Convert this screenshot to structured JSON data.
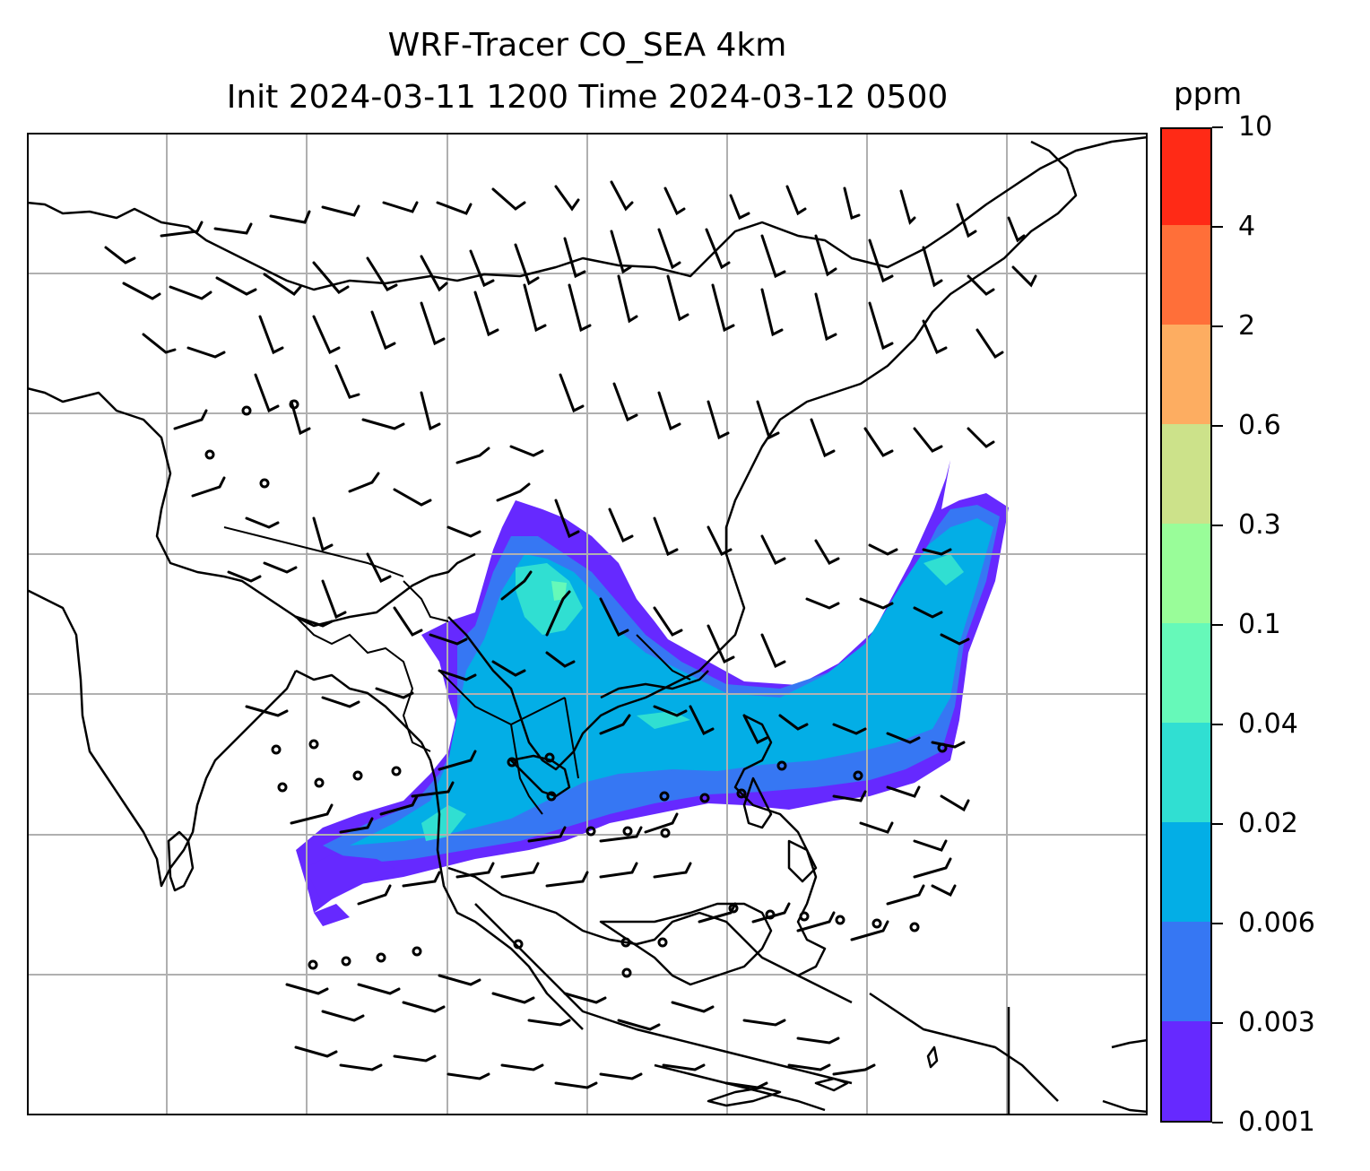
{
  "title_line1": "WRF-Tracer CO_SEA 4km",
  "title_line2": "Init 2024-03-11 1200 Time 2024-03-12 0500",
  "colorbar": {
    "unit": "ppm",
    "ticks": [
      "0.001",
      "0.003",
      "0.006",
      "0.02",
      "0.04",
      "0.1",
      "0.3",
      "0.6",
      "2",
      "4",
      "10"
    ],
    "colors": [
      "#6629ff",
      "#3677f3",
      "#03aee6",
      "#30dfd2",
      "#66f9b9",
      "#99fd99",
      "#cce28a",
      "#fdad61",
      "#ff6f39",
      "#ff2a16"
    ]
  },
  "map": {
    "field": "CO tracer concentration",
    "gridlines": true,
    "features": [
      "coastlines",
      "country borders",
      "wind barbs"
    ]
  }
}
